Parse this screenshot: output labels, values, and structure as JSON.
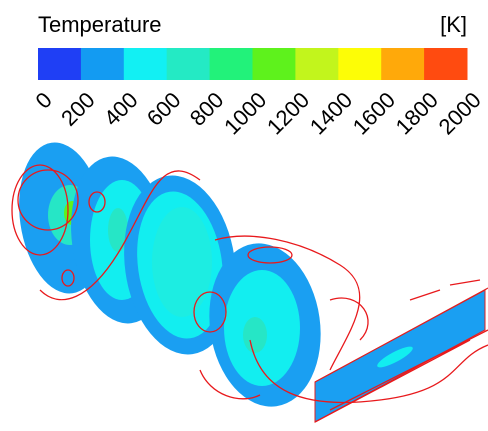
{
  "legend": {
    "title": "Temperature",
    "unit": "[K]",
    "colors": [
      "#1f3ff5",
      "#139bf2",
      "#12f0f3",
      "#24eac4",
      "#22f27a",
      "#5ef21c",
      "#c2f51c",
      "#fdfd06",
      "#ffa90a",
      "#ff4b10"
    ],
    "ticks": [
      0,
      200,
      400,
      600,
      800,
      1000,
      1200,
      1400,
      1600,
      1800,
      2000
    ]
  }
}
